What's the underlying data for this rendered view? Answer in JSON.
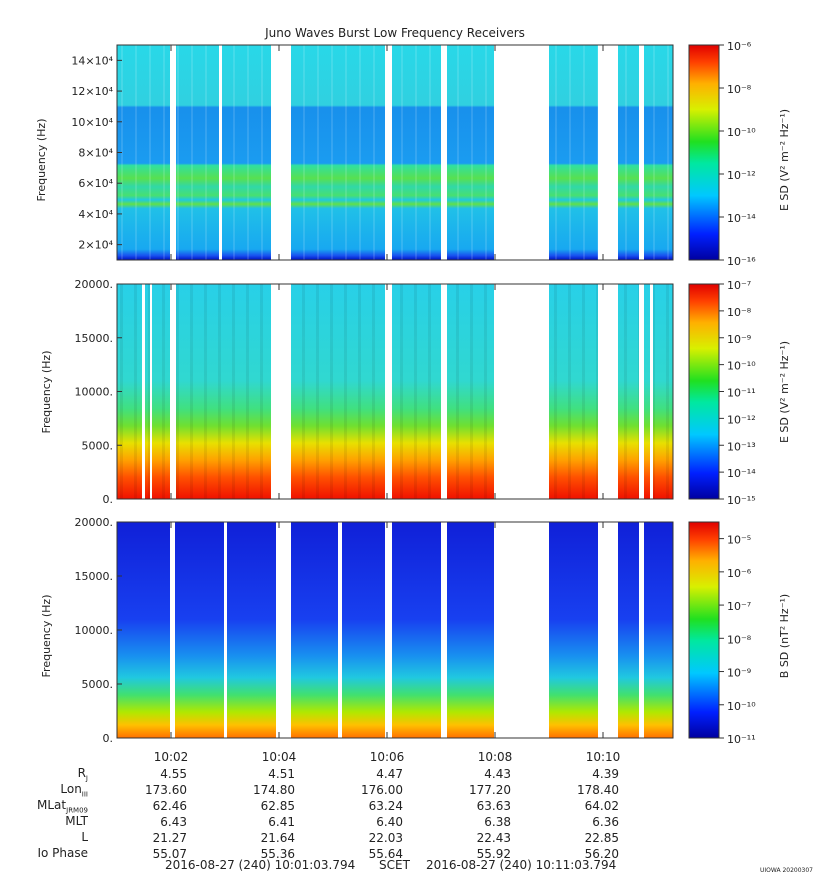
{
  "chart_data": [
    {
      "type": "heatmap",
      "title": "Juno Waves Burst Low Frequency Receivers",
      "ylabel": "Frequency (Hz)",
      "yticks": [
        {
          "label": "2×10⁴",
          "value": 20000
        },
        {
          "label": "4×10⁴",
          "value": 40000
        },
        {
          "label": "6×10⁴",
          "value": 60000
        },
        {
          "label": "8×10⁴",
          "value": 80000
        },
        {
          "label": "10×10⁴",
          "value": 100000
        },
        {
          "label": "12×10⁴",
          "value": 120000
        },
        {
          "label": "14×10⁴",
          "value": 140000
        }
      ],
      "ylim": [
        10000,
        150000
      ],
      "colorbar_label": "E SD (V² m⁻² Hz⁻¹)",
      "colorbar_ticks": [
        "10⁻⁶",
        "10⁻⁸",
        "10⁻¹⁰",
        "10⁻¹²",
        "10⁻¹⁴",
        "10⁻¹⁶"
      ],
      "clim_log10": [
        -16,
        -6
      ]
    },
    {
      "type": "heatmap",
      "ylabel": "Frequency (Hz)",
      "yticks": [
        {
          "label": "20000.",
          "value": 20000
        },
        {
          "label": "15000.",
          "value": 15000
        },
        {
          "label": "10000.",
          "value": 10000
        },
        {
          "label": "5000.",
          "value": 5000
        },
        {
          "label": "0.",
          "value": 0
        }
      ],
      "ylim": [
        0,
        20000
      ],
      "colorbar_label": "E SD (V² m⁻² Hz⁻¹)",
      "colorbar_ticks": [
        "10⁻⁷",
        "10⁻⁸",
        "10⁻⁹",
        "10⁻¹⁰",
        "10⁻¹¹",
        "10⁻¹²",
        "10⁻¹³",
        "10⁻¹⁴",
        "10⁻¹⁵"
      ],
      "clim_log10": [
        -15,
        -7
      ]
    },
    {
      "type": "heatmap",
      "ylabel": "Frequency (Hz)",
      "yticks": [
        {
          "label": "20000.",
          "value": 20000
        },
        {
          "label": "15000.",
          "value": 15000
        },
        {
          "label": "10000.",
          "value": 10000
        },
        {
          "label": "5000.",
          "value": 5000
        },
        {
          "label": "0.",
          "value": 0
        }
      ],
      "ylim": [
        0,
        20000
      ],
      "colorbar_label": "B SD (nT² Hz⁻¹)",
      "colorbar_ticks": [
        "10⁻⁵",
        "10⁻⁶",
        "10⁻⁷",
        "10⁻⁸",
        "10⁻⁹",
        "10⁻¹⁰",
        "10⁻¹¹"
      ],
      "clim_log10": [
        -11,
        -4.5
      ]
    }
  ],
  "time_axis": {
    "ticks": [
      "10:02",
      "10:04",
      "10:06",
      "10:08",
      "10:10"
    ]
  },
  "ephemeris": [
    {
      "label": "R",
      "sub": "J",
      "values": [
        "4.55",
        "4.51",
        "4.47",
        "4.43",
        "4.39"
      ]
    },
    {
      "label": "Lon",
      "sub": "III",
      "values": [
        "173.60",
        "174.80",
        "176.00",
        "177.20",
        "178.40"
      ]
    },
    {
      "label": "MLat",
      "sub": "JRM09",
      "values": [
        "62.46",
        "62.85",
        "63.24",
        "63.63",
        "64.02"
      ]
    },
    {
      "label": "MLT",
      "sub": "",
      "values": [
        "6.43",
        "6.41",
        "6.40",
        "6.38",
        "6.36"
      ]
    },
    {
      "label": "L",
      "sub": "",
      "values": [
        "21.27",
        "21.64",
        "22.03",
        "22.43",
        "22.85"
      ]
    },
    {
      "label": "Io Phase",
      "sub": "",
      "values": [
        "55.07",
        "55.36",
        "55.64",
        "55.92",
        "56.20"
      ]
    }
  ],
  "footer": {
    "start": "2016-08-27 (240) 10:01:03.794",
    "scet": "SCET",
    "end": "2016-08-27 (240) 10:11:03.794",
    "stamp": "UIOWA 20200307"
  },
  "colors": {
    "gap": "#ffffff",
    "frame": "#333333"
  }
}
